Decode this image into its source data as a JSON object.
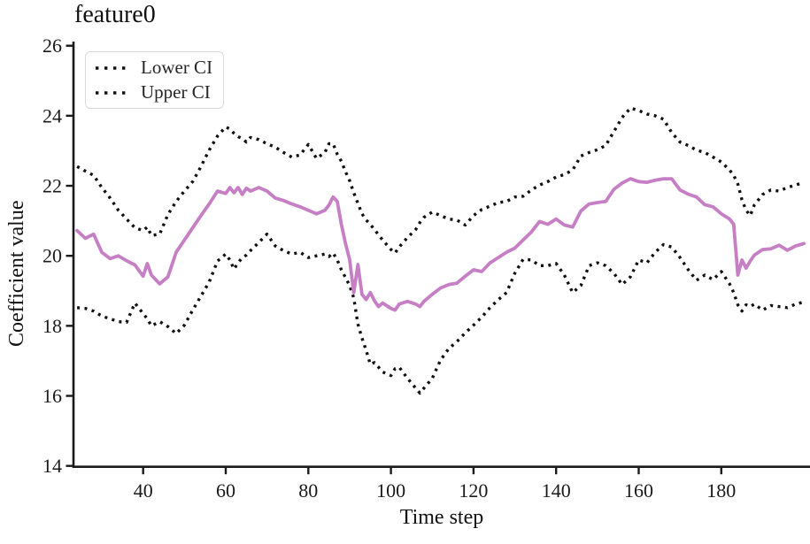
{
  "chart_data": {
    "type": "line",
    "title": "feature0",
    "xlabel": "Time step",
    "ylabel": "Coefficient value",
    "xlim": [
      23.1,
      201.5
    ],
    "ylim": [
      14,
      26
    ],
    "x_ticks": [
      40,
      60,
      80,
      100,
      120,
      140,
      160,
      180
    ],
    "y_ticks": [
      14,
      16,
      18,
      20,
      22,
      24,
      26
    ],
    "grid": false,
    "legend": {
      "position": "upper-left",
      "entries": [
        "Lower CI",
        "Upper CI"
      ]
    },
    "colors": {
      "ci": "#111111",
      "coefficient": "#c67ec4"
    },
    "x": [
      24,
      26,
      28,
      30,
      32,
      34,
      36,
      38,
      40,
      41,
      42,
      44,
      46,
      48,
      50,
      52,
      54,
      56,
      58,
      60,
      61,
      62,
      63,
      64,
      65,
      66,
      68,
      70,
      72,
      74,
      76,
      78,
      80,
      82,
      84,
      85,
      86,
      87,
      88,
      89,
      90,
      91,
      92,
      93,
      94,
      95,
      96,
      97,
      98,
      100,
      101,
      102,
      104,
      106,
      107,
      108,
      110,
      112,
      114,
      116,
      118,
      120,
      122,
      124,
      126,
      128,
      130,
      132,
      134,
      136,
      138,
      140,
      142,
      144,
      146,
      148,
      150,
      152,
      154,
      156,
      158,
      160,
      162,
      164,
      166,
      168,
      170,
      172,
      174,
      176,
      178,
      180,
      182,
      183,
      184,
      185,
      186,
      187,
      188,
      190,
      192,
      194,
      196,
      198,
      200
    ],
    "series": [
      {
        "name": "Lower CI",
        "style": "dotted",
        "color": "#111111",
        "values": [
          18.52,
          18.5,
          18.42,
          18.28,
          18.2,
          18.12,
          18.1,
          18.65,
          18.35,
          18.2,
          18.0,
          18.12,
          17.98,
          17.78,
          18.02,
          18.45,
          18.85,
          19.25,
          19.85,
          20.05,
          19.88,
          19.62,
          19.8,
          19.95,
          20.02,
          20.15,
          20.38,
          20.62,
          20.28,
          20.15,
          20.05,
          20.1,
          19.95,
          20.0,
          20.05,
          19.98,
          20.08,
          19.88,
          19.6,
          19.38,
          19.15,
          18.8,
          18.05,
          17.65,
          17.3,
          16.9,
          16.95,
          16.82,
          16.68,
          16.58,
          16.78,
          16.82,
          16.5,
          16.22,
          16.08,
          16.22,
          16.5,
          17.02,
          17.35,
          17.55,
          17.8,
          18.02,
          18.25,
          18.52,
          18.75,
          18.95,
          19.5,
          19.9,
          19.88,
          19.72,
          19.72,
          19.78,
          19.45,
          18.95,
          19.15,
          19.72,
          19.8,
          19.72,
          19.5,
          19.18,
          19.4,
          19.88,
          19.8,
          20.1,
          20.32,
          20.25,
          19.95,
          19.6,
          19.3,
          19.45,
          19.32,
          19.55,
          19.2,
          18.95,
          18.6,
          18.42,
          18.6,
          18.55,
          18.62,
          18.45,
          18.58,
          18.55,
          18.52,
          18.62,
          18.68
        ]
      },
      {
        "name": "Upper CI",
        "style": "dotted",
        "color": "#111111",
        "values": [
          22.55,
          22.42,
          22.3,
          21.95,
          21.65,
          21.3,
          21.05,
          20.8,
          20.72,
          20.82,
          20.58,
          20.62,
          21.18,
          21.55,
          21.85,
          22.12,
          22.55,
          23.02,
          23.42,
          23.68,
          23.62,
          23.5,
          23.4,
          23.35,
          23.25,
          23.38,
          23.32,
          23.2,
          23.1,
          22.95,
          22.82,
          22.88,
          23.18,
          22.78,
          22.95,
          23.2,
          23.2,
          22.9,
          22.7,
          22.4,
          22.15,
          21.8,
          21.5,
          21.2,
          21.02,
          20.9,
          20.75,
          20.6,
          20.45,
          20.18,
          20.08,
          20.25,
          20.52,
          20.75,
          20.95,
          21.1,
          21.25,
          21.15,
          21.05,
          21.02,
          20.88,
          21.15,
          21.32,
          21.42,
          21.52,
          21.55,
          21.68,
          21.7,
          21.88,
          22.02,
          22.12,
          22.25,
          22.32,
          22.45,
          22.85,
          22.95,
          23.03,
          23.15,
          23.55,
          23.95,
          24.22,
          24.15,
          24.05,
          24.0,
          23.9,
          23.52,
          23.25,
          23.15,
          23.02,
          22.95,
          22.82,
          22.68,
          22.45,
          22.3,
          22.05,
          21.6,
          21.3,
          21.15,
          21.45,
          21.75,
          21.88,
          21.85,
          21.95,
          22.02,
          22.1
        ]
      },
      {
        "name": "Coefficient",
        "style": "solid",
        "color": "#c67ec4",
        "values": [
          20.72,
          20.5,
          20.62,
          20.1,
          19.92,
          20.0,
          19.86,
          19.74,
          19.42,
          19.78,
          19.45,
          19.2,
          19.4,
          20.1,
          20.45,
          20.8,
          21.15,
          21.48,
          21.85,
          21.78,
          21.95,
          21.8,
          21.95,
          21.75,
          21.93,
          21.85,
          21.95,
          21.85,
          21.65,
          21.58,
          21.48,
          21.4,
          21.3,
          21.2,
          21.3,
          21.45,
          21.68,
          21.55,
          20.9,
          20.35,
          19.9,
          18.95,
          19.75,
          18.9,
          18.75,
          18.95,
          18.72,
          18.55,
          18.65,
          18.5,
          18.45,
          18.62,
          18.7,
          18.62,
          18.55,
          18.7,
          18.9,
          19.08,
          19.18,
          19.22,
          19.42,
          19.6,
          19.55,
          19.8,
          19.95,
          20.1,
          20.22,
          20.45,
          20.68,
          20.98,
          20.9,
          21.05,
          20.88,
          20.82,
          21.28,
          21.48,
          21.52,
          21.55,
          21.9,
          22.08,
          22.2,
          22.12,
          22.1,
          22.16,
          22.2,
          22.2,
          21.88,
          21.76,
          21.68,
          21.46,
          21.4,
          21.2,
          21.05,
          20.9,
          19.45,
          19.88,
          19.65,
          19.85,
          20.02,
          20.18,
          20.2,
          20.3,
          20.16,
          20.28,
          20.35
        ]
      }
    ]
  }
}
